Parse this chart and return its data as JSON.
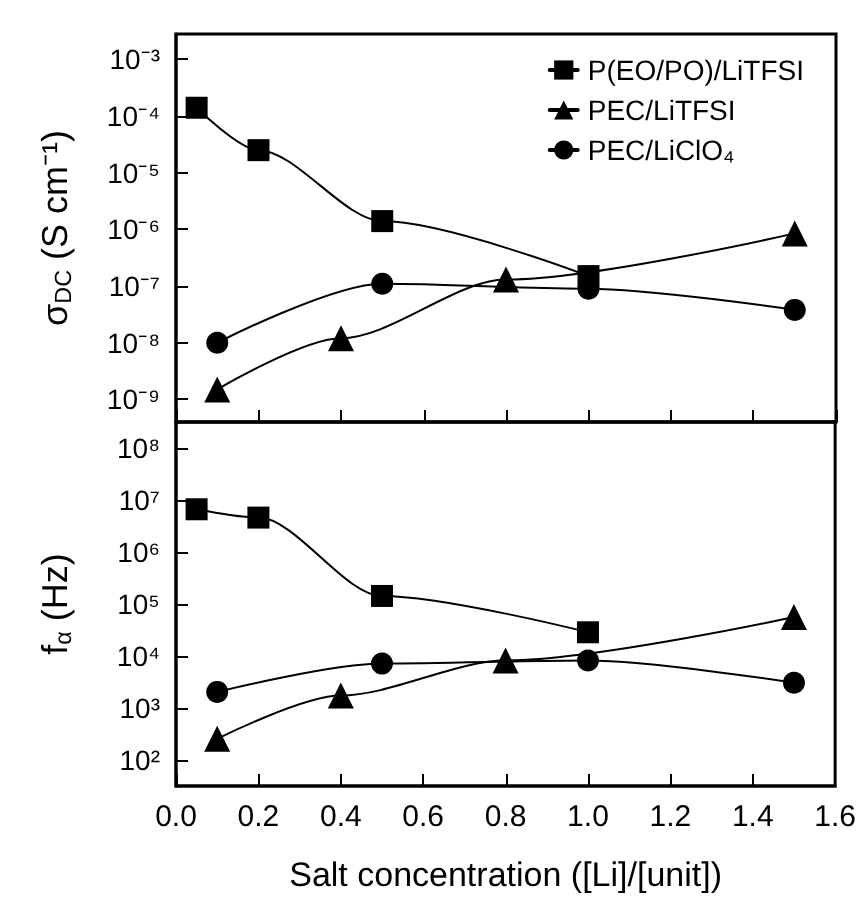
{
  "chart_data": [
    {
      "type": "line",
      "ylabel": "σ$_{DC}$ (S cm⁻¹)",
      "log": "y",
      "legend": "top right",
      "tick_labels": "y",
      "line_style": "solid",
      "xlim": [
        0,
        1.6
      ],
      "xticks": [
        {
          "value": 0,
          "label": null
        },
        {
          "value": 0.2,
          "label": null
        },
        {
          "value": 0.4,
          "label": null
        },
        {
          "value": 0.6,
          "label": null
        },
        {
          "value": 0.8,
          "label": null
        },
        {
          "value": 1,
          "label": null
        },
        {
          "value": 1.2,
          "label": null
        },
        {
          "value": 1.4,
          "label": null
        },
        {
          "value": 1.6,
          "label": null
        }
      ],
      "ylim": [
        4e-10,
        0.0028
      ],
      "yticks": [
        {
          "value": 1e-09,
          "label": "10⁻⁹"
        },
        {
          "value": 1e-08,
          "label": "10⁻⁸"
        },
        {
          "value": 1e-07,
          "label": "10⁻⁷"
        },
        {
          "value": 1e-06,
          "label": "10⁻⁶"
        },
        {
          "value": 1e-05,
          "label": "10⁻⁵"
        },
        {
          "value": 0.0001,
          "label": "10⁻⁴"
        },
        {
          "value": 0.001,
          "label": "10⁻³"
        }
      ],
      "series": [
        {
          "name": "P(EO/PO)/LiTFSI",
          "color": "#000000",
          "marker": "square",
          "x": [
            0.05,
            0.2,
            0.5,
            1.0
          ],
          "values": [
            0.00014,
            2.5e-05,
            1.4e-06,
            1.5e-07
          ]
        },
        {
          "name": "PEC/LiTFSI",
          "color": "#000000",
          "marker": "triangle",
          "x": [
            0.1,
            0.4,
            0.8,
            1.5
          ],
          "values": [
            1.5e-09,
            1.2e-08,
            1.3e-07,
            8.5e-07
          ]
        },
        {
          "name": "PEC/LiClO₄",
          "color": "#000000",
          "marker": "circle",
          "x": [
            0.1,
            0.5,
            1.0,
            1.5
          ],
          "values": [
            1e-08,
            1.1e-07,
            9e-08,
            3.8e-08
          ]
        }
      ]
    },
    {
      "type": "line",
      "ylabel": "f$_{α}$ (Hz)",
      "xlabel": "Salt concentration ([Li]/[unit])",
      "log": "y",
      "line_style": "solid",
      "xlim": [
        0,
        1.6
      ],
      "xticks": [
        {
          "value": 0,
          "label": "0.0"
        },
        {
          "value": 0.2,
          "label": "0.2"
        },
        {
          "value": 0.4,
          "label": "0.4"
        },
        {
          "value": 0.6,
          "label": "0.6"
        },
        {
          "value": 0.8,
          "label": "0.8"
        },
        {
          "value": 1,
          "label": "1.0"
        },
        {
          "value": 1.2,
          "label": "1.2"
        },
        {
          "value": 1.4,
          "label": "1.4"
        },
        {
          "value": 1.6,
          "label": "1.6"
        }
      ],
      "ylim": [
        31,
        310000000.0
      ],
      "yticks": [
        {
          "value": 100,
          "label": "10²"
        },
        {
          "value": 1000,
          "label": "10³"
        },
        {
          "value": 10000.0,
          "label": "10⁴"
        },
        {
          "value": 100000.0,
          "label": "10⁵"
        },
        {
          "value": 1000000.0,
          "label": "10⁶"
        },
        {
          "value": 10000000.0,
          "label": "10⁷"
        },
        {
          "value": 100000000.0,
          "label": "10⁸"
        }
      ],
      "series": [
        {
          "color": "#000000",
          "marker": "square",
          "x": [
            0.05,
            0.2,
            0.5,
            1.0
          ],
          "values": [
            6500000.0,
            4500000.0,
            140000.0,
            28000.0
          ]
        },
        {
          "color": "#000000",
          "marker": "triangle",
          "x": [
            0.1,
            0.4,
            0.8,
            1.5
          ],
          "values": [
            250,
            1700,
            8000,
            55000.0
          ]
        },
        {
          "color": "#000000",
          "marker": "circle",
          "x": [
            0.1,
            0.5,
            1.0,
            1.5
          ],
          "values": [
            2000,
            7000,
            8000,
            3000
          ]
        }
      ]
    }
  ]
}
